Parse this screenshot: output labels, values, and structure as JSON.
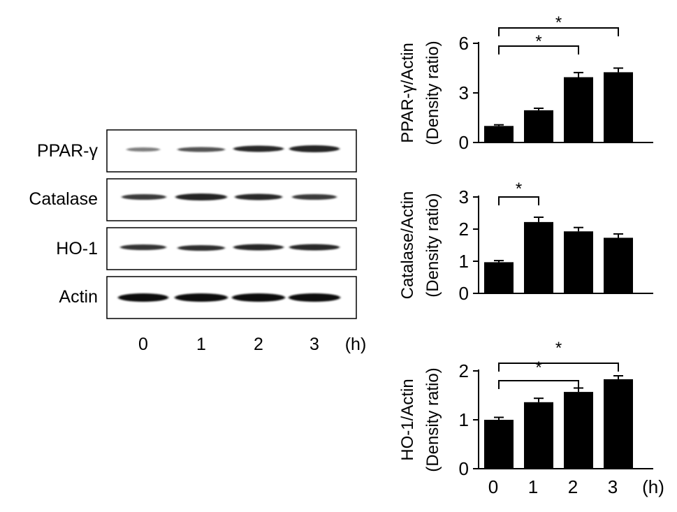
{
  "blot": {
    "labels": [
      "PPAR-γ",
      "Catalase",
      "HO-1",
      "Actin"
    ],
    "lanes": [
      "0",
      "1",
      "2",
      "3"
    ],
    "time_unit": "(h)"
  },
  "chart_data": [
    {
      "type": "bar",
      "categories": [
        "0",
        "1",
        "2",
        "3"
      ],
      "values": [
        1.0,
        1.95,
        3.95,
        4.25
      ],
      "errors": [
        0.07,
        0.12,
        0.28,
        0.25
      ],
      "ylabel_line1": "PPAR-γ/Actin",
      "ylabel_line2": "(Density ratio)",
      "ylim": [
        0,
        6
      ],
      "yticks": [
        0,
        3,
        6
      ],
      "significance": [
        {
          "from": "0",
          "to": "2",
          "label": "*"
        },
        {
          "from": "0",
          "to": "3",
          "label": "*"
        }
      ],
      "show_x_labels": false
    },
    {
      "type": "bar",
      "categories": [
        "0",
        "1",
        "2",
        "3"
      ],
      "values": [
        0.97,
        2.22,
        1.93,
        1.73
      ],
      "errors": [
        0.05,
        0.15,
        0.12,
        0.12
      ],
      "ylabel_line1": "Catalase/Actin",
      "ylabel_line2": "(Density ratio)",
      "ylim": [
        0,
        3
      ],
      "yticks": [
        0,
        1,
        2,
        3
      ],
      "significance": [
        {
          "from": "0",
          "to": "1",
          "label": "*"
        }
      ],
      "show_x_labels": false
    },
    {
      "type": "bar",
      "categories": [
        "0",
        "1",
        "2",
        "3"
      ],
      "values": [
        1.0,
        1.36,
        1.57,
        1.83
      ],
      "errors": [
        0.05,
        0.08,
        0.08,
        0.07
      ],
      "ylabel_line1": "HO-1/Actin",
      "ylabel_line2": "(Density ratio)",
      "ylim": [
        0,
        2
      ],
      "yticks": [
        0,
        1,
        2
      ],
      "significance": [
        {
          "from": "0",
          "to": "2",
          "label": "*"
        },
        {
          "from": "0",
          "to": "3",
          "label": "*"
        }
      ],
      "show_x_labels": true,
      "x_unit": "(h)"
    }
  ]
}
